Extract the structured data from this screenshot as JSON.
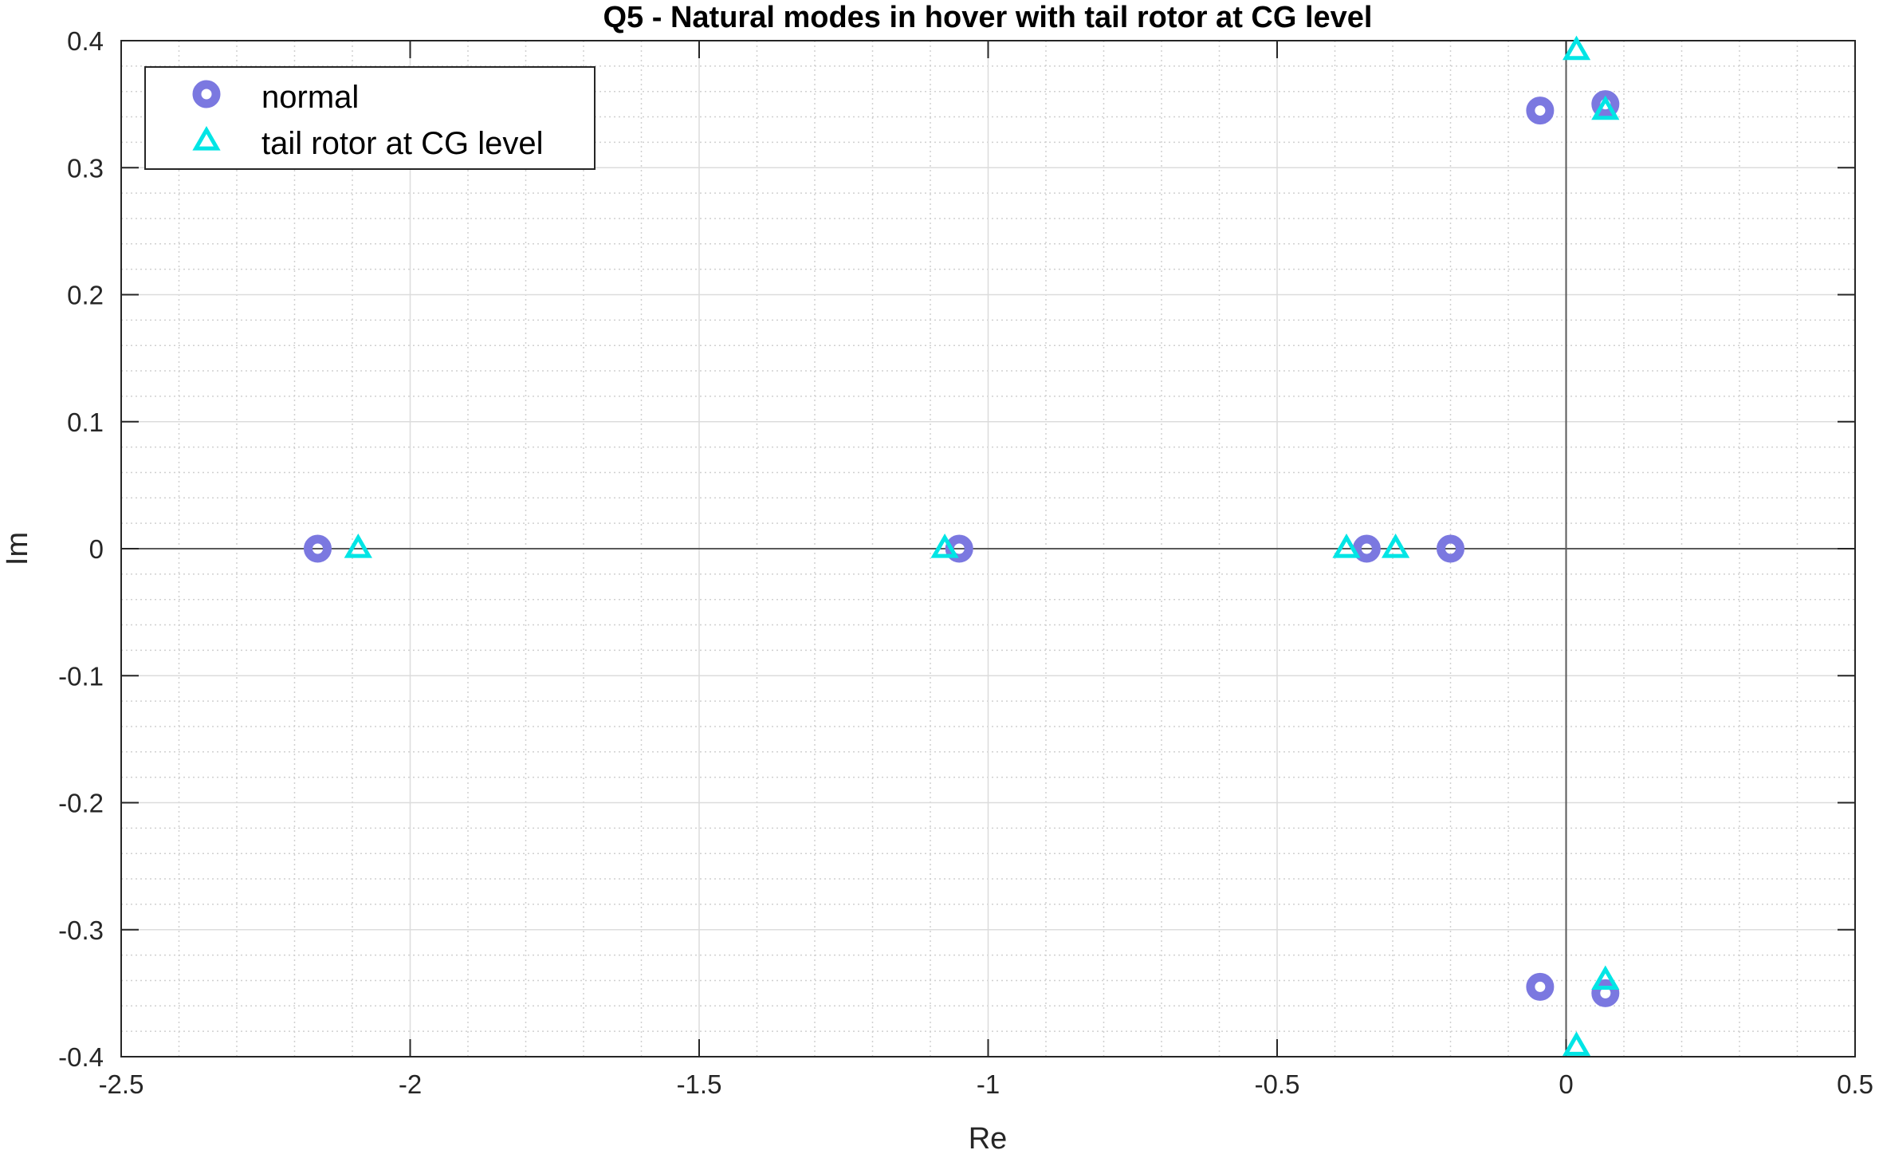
{
  "chart_data": {
    "type": "scatter",
    "title": "Q5 - Natural modes in hover with tail rotor at CG level",
    "xlabel": "Re",
    "ylabel": "Im",
    "xlim": [
      -2.5,
      0.5
    ],
    "ylim": [
      -0.4,
      0.4
    ],
    "x_ticks": [
      -2.5,
      -2,
      -1.5,
      -1,
      -0.5,
      0,
      0.5
    ],
    "y_ticks": [
      -0.4,
      -0.3,
      -0.2,
      -0.1,
      0,
      0.1,
      0.2,
      0.3,
      0.4
    ],
    "x_tick_labels": [
      "-2.5",
      "-2",
      "-1.5",
      "-1",
      "-0.5",
      "0",
      "0.5"
    ],
    "y_tick_labels": [
      "-0.4",
      "-0.3",
      "-0.2",
      "-0.1",
      "0",
      "0.1",
      "0.2",
      "0.3",
      "0.4"
    ],
    "grid": true,
    "minor_grid": true,
    "legend_position": "top-left",
    "series": [
      {
        "name": "normal",
        "marker": "circle",
        "color": "#7b78e0",
        "points": [
          {
            "x": -2.16,
            "y": 0
          },
          {
            "x": -1.05,
            "y": 0
          },
          {
            "x": -0.345,
            "y": 0
          },
          {
            "x": -0.2,
            "y": 0
          },
          {
            "x": -0.045,
            "y": 0.345
          },
          {
            "x": -0.045,
            "y": -0.345
          },
          {
            "x": 0.068,
            "y": 0.35
          },
          {
            "x": 0.068,
            "y": -0.35
          }
        ]
      },
      {
        "name": "tail rotor at CG level",
        "marker": "triangle",
        "color": "#00e5e5",
        "points": [
          {
            "x": -2.09,
            "y": 0
          },
          {
            "x": -1.075,
            "y": 0
          },
          {
            "x": -0.38,
            "y": 0
          },
          {
            "x": -0.295,
            "y": 0
          },
          {
            "x": 0.018,
            "y": 0.392
          },
          {
            "x": 0.018,
            "y": -0.392
          },
          {
            "x": 0.068,
            "y": 0.345
          },
          {
            "x": 0.068,
            "y": -0.34
          }
        ]
      }
    ]
  }
}
